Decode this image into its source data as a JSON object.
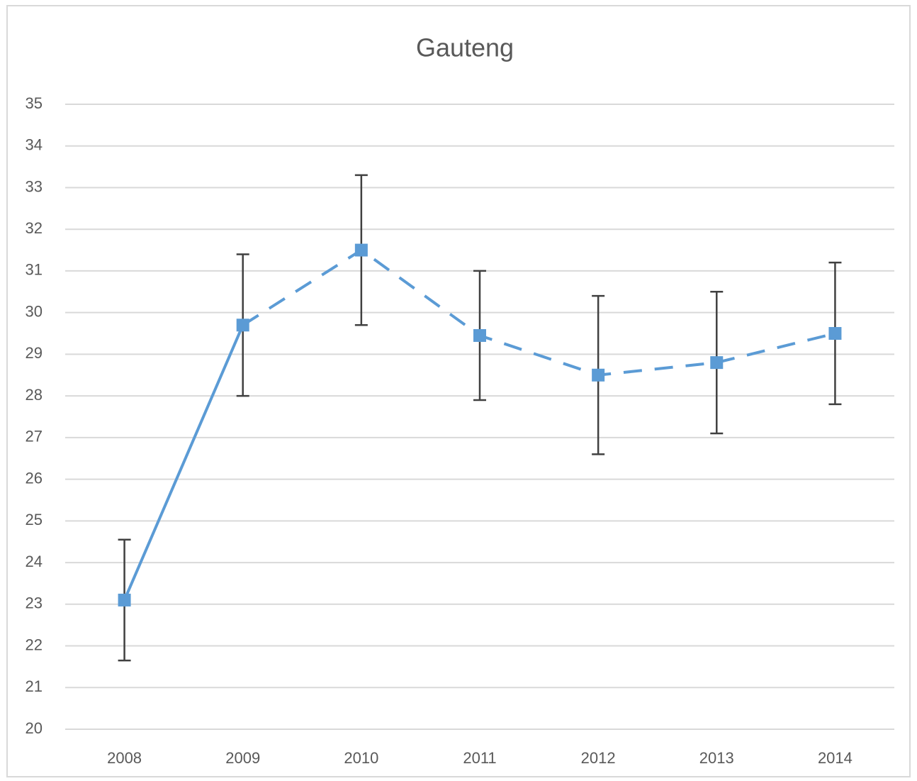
{
  "chart_data": {
    "type": "line",
    "title": "Gauteng",
    "categories": [
      "2008",
      "2009",
      "2010",
      "2011",
      "2012",
      "2013",
      "2014"
    ],
    "series": [
      {
        "name": "Gauteng",
        "color": "#5b9bd5",
        "values": [
          23.1,
          29.7,
          31.5,
          29.45,
          28.5,
          28.8,
          29.5
        ],
        "errors": [
          1.45,
          1.7,
          1.8,
          1.55,
          1.9,
          1.7,
          1.7
        ]
      }
    ],
    "dashed_from_category": "2009",
    "error_bar_color": "#404040",
    "ylim": [
      20,
      35
    ],
    "yticks": [
      20,
      21,
      22,
      23,
      24,
      25,
      26,
      27,
      28,
      29,
      30,
      31,
      32,
      33,
      34,
      35
    ],
    "grid": true
  }
}
